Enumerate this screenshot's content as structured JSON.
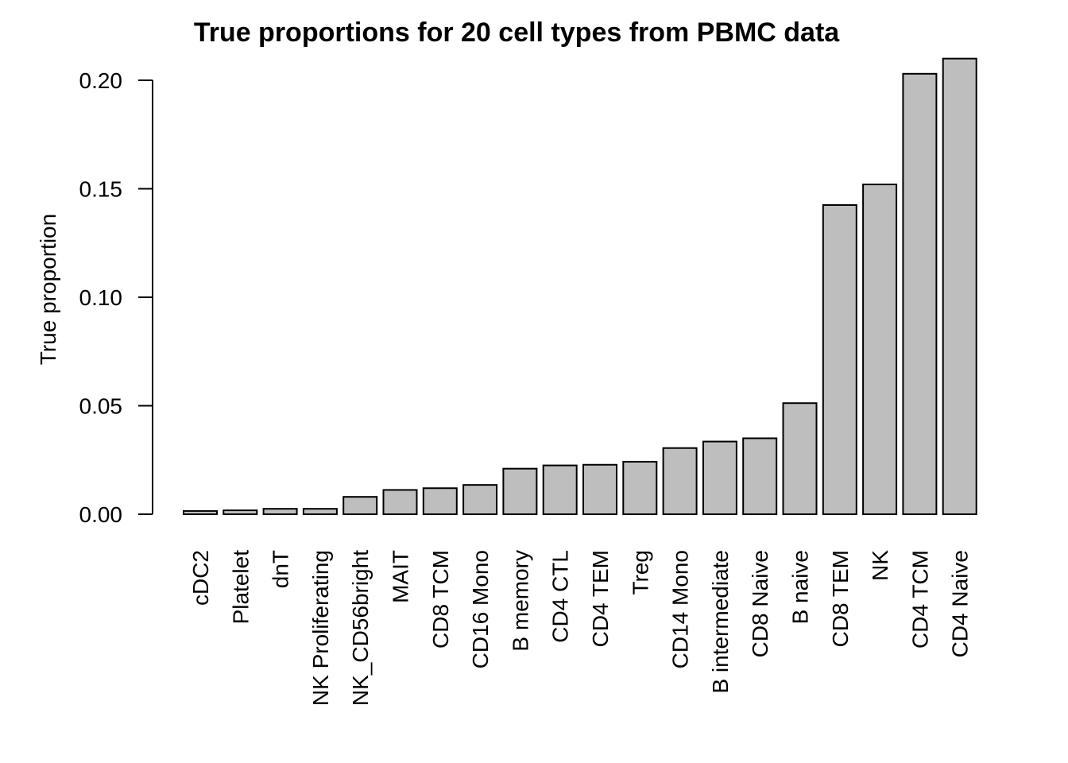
{
  "chart_data": {
    "type": "bar",
    "title": "True proportions for 20 cell types from PBMC data",
    "xlabel": "",
    "ylabel": "True proportion",
    "ylim": [
      0,
      0.21
    ],
    "yticks": [
      "0.00",
      "0.05",
      "0.10",
      "0.15",
      "0.20"
    ],
    "ytick_values": [
      0,
      0.05,
      0.1,
      0.15,
      0.2
    ],
    "grid": false,
    "legend": "none",
    "colors": {
      "bar_fill": "#bebebe",
      "bar_stroke": "#000000"
    },
    "categories": [
      "cDC2",
      "Platelet",
      "dnT",
      "NK Proliferating",
      "NK_CD56bright",
      "MAIT",
      "CD8 TCM",
      "CD16 Mono",
      "B memory",
      "CD4 CTL",
      "CD4 TEM",
      "Treg",
      "CD14 Mono",
      "B intermediate",
      "CD8 Naive",
      "B naive",
      "CD8 TEM",
      "NK",
      "CD4 TCM",
      "CD4 Naive"
    ],
    "values": [
      0.0015,
      0.0018,
      0.0025,
      0.0025,
      0.008,
      0.0112,
      0.012,
      0.0135,
      0.021,
      0.0225,
      0.0228,
      0.0242,
      0.0305,
      0.0335,
      0.035,
      0.0512,
      0.1425,
      0.152,
      0.203,
      0.21
    ]
  }
}
